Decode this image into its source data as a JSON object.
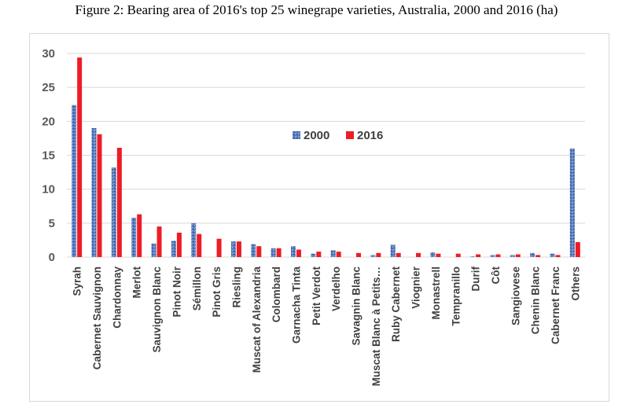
{
  "figure_title": "Figure 2: Bearing area of 2016's top 25 winegrape varieties, Australia, 2000 and 2016 (ha)",
  "colors": {
    "series_2000": "#5b7fbf",
    "series_2016": "#ee1c25",
    "grid": "#d9d9d9"
  },
  "chart_data": {
    "type": "bar",
    "title": "",
    "xlabel": "",
    "ylabel": "",
    "ylim": [
      0,
      30
    ],
    "yticks": [
      "0",
      "5",
      "10",
      "15",
      "20",
      "25",
      "30"
    ],
    "grid": "horizontal",
    "legend_position": "center",
    "categories": [
      "Syrah",
      "Cabernet Sauvignon",
      "Chardonnay",
      "Merlot",
      "Sauvignon Blanc",
      "Pinot Noir",
      "Sémillon",
      "Pinot Gris",
      "Riesling",
      "Muscat of Alexandria",
      "Colombard",
      "Garnacha Tinta",
      "Petit Verdot",
      "Verdelho",
      "Savagnin Blanc",
      "Muscat Blanc à Petits…",
      "Ruby Cabernet",
      "Viognier",
      "Monastrell",
      "Tempranillo",
      "Durif",
      "Côt",
      "Sangiovese",
      "Chenin Blanc",
      "Cabernet Franc",
      "Others"
    ],
    "series": [
      {
        "name": "2000",
        "values": [
          22.4,
          19.0,
          13.2,
          5.8,
          2.0,
          2.4,
          5.0,
          0.0,
          2.3,
          1.9,
          1.3,
          1.6,
          0.5,
          1.0,
          0.0,
          0.3,
          1.8,
          0.0,
          0.7,
          0.0,
          0.1,
          0.3,
          0.3,
          0.6,
          0.5,
          16.0
        ]
      },
      {
        "name": "2016",
        "values": [
          29.4,
          18.1,
          16.1,
          6.3,
          4.5,
          3.6,
          3.4,
          2.7,
          2.3,
          1.6,
          1.3,
          1.1,
          0.8,
          0.8,
          0.6,
          0.6,
          0.6,
          0.6,
          0.5,
          0.5,
          0.4,
          0.4,
          0.4,
          0.3,
          0.3,
          2.2
        ]
      }
    ]
  }
}
